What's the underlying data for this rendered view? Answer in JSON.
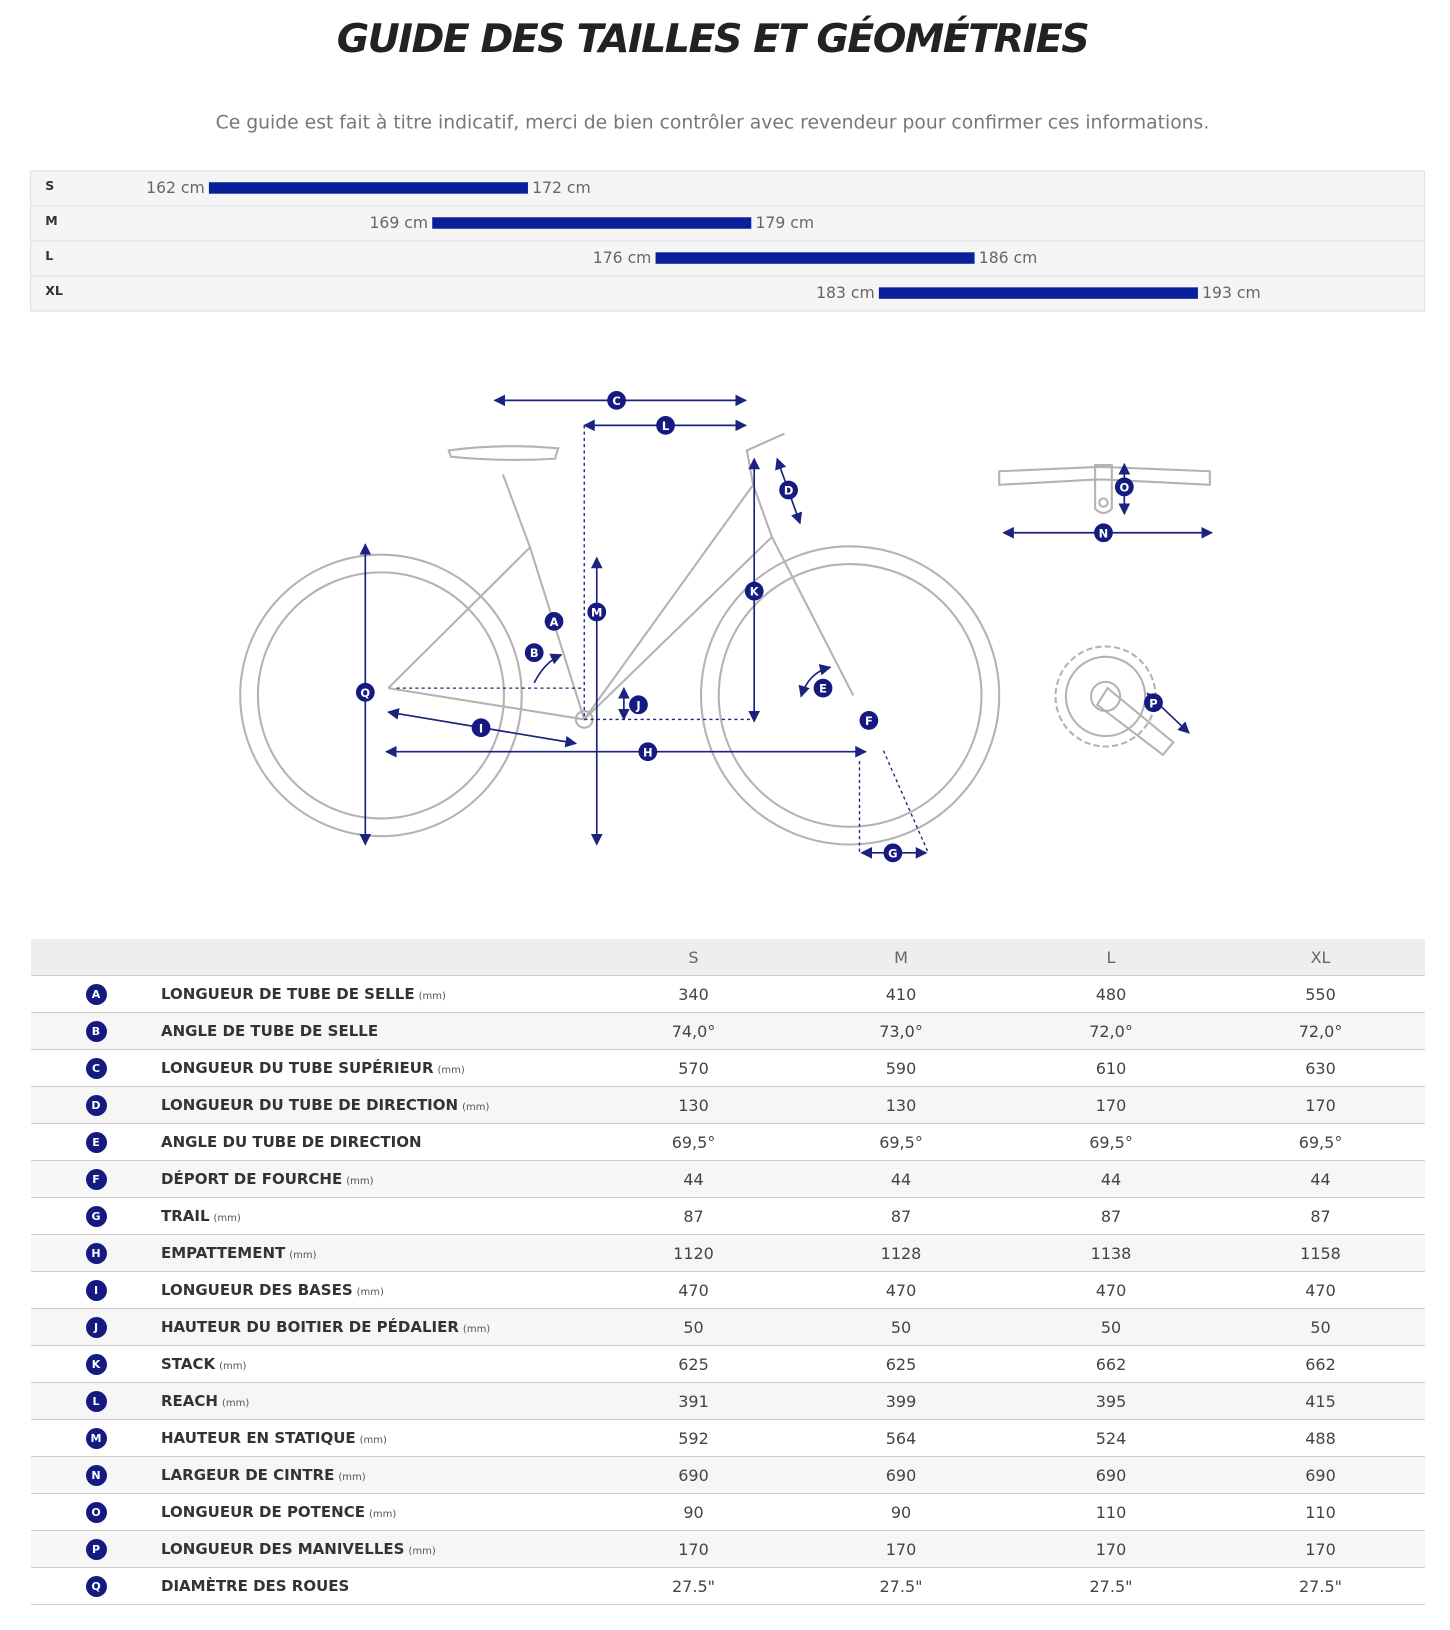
{
  "header": {
    "title": "GUIDE DES TAILLES ET GÉOMÉTRIES",
    "subtitle": "Ce guide est fait à titre indicatif, merci de bien contrôler avec revendeur pour confirmer ces informations."
  },
  "sizes": [
    {
      "size": "S",
      "min": {
        "value": 162,
        "label": "162 cm"
      },
      "max": {
        "value": 172,
        "label": "172 cm"
      }
    },
    {
      "size": "M",
      "min": {
        "value": 169,
        "label": "169 cm"
      },
      "max": {
        "value": 179,
        "label": "179 cm"
      }
    },
    {
      "size": "L",
      "min": {
        "value": 176,
        "label": "176 cm"
      },
      "max": {
        "value": 186,
        "label": "186 cm"
      }
    },
    {
      "size": "XL",
      "min": {
        "value": 183,
        "label": "183 cm"
      },
      "max": {
        "value": 193,
        "label": "193 cm"
      }
    }
  ],
  "table": {
    "columns": [
      "S",
      "M",
      "L",
      "XL"
    ],
    "rows": [
      {
        "letter": "A",
        "name": "LONGUEUR DE TUBE DE SELLE",
        "unit": "(mm)",
        "values": [
          "340",
          "410",
          "480",
          "550"
        ]
      },
      {
        "letter": "B",
        "name": "ANGLE DE TUBE DE SELLE",
        "values": [
          "74,0°",
          "73,0°",
          "72,0°",
          "72,0°"
        ]
      },
      {
        "letter": "C",
        "name": "LONGUEUR DU TUBE SUPÉRIEUR",
        "unit": "(mm)",
        "values": [
          "570",
          "590",
          "610",
          "630"
        ]
      },
      {
        "letter": "D",
        "name": "LONGUEUR DU TUBE DE DIRECTION",
        "unit": "(mm)",
        "values": [
          "130",
          "130",
          "170",
          "170"
        ]
      },
      {
        "letter": "E",
        "name": "ANGLE DU TUBE DE DIRECTION",
        "values": [
          "69,5°",
          "69,5°",
          "69,5°",
          "69,5°"
        ]
      },
      {
        "letter": "F",
        "name": "DÉPORT DE FOURCHE",
        "unit": "(mm)",
        "values": [
          "44",
          "44",
          "44",
          "44"
        ]
      },
      {
        "letter": "G",
        "name": "TRAIL",
        "unit": "(mm)",
        "values": [
          "87",
          "87",
          "87",
          "87"
        ]
      },
      {
        "letter": "H",
        "name": "EMPATTEMENT",
        "unit": "(mm)",
        "values": [
          "1120",
          "1128",
          "1138",
          "1158"
        ]
      },
      {
        "letter": "I",
        "name": "LONGUEUR DES BASES",
        "unit": "(mm)",
        "values": [
          "470",
          "470",
          "470",
          "470"
        ]
      },
      {
        "letter": "J",
        "name": "HAUTEUR DU BOITIER DE PÉDALIER",
        "unit": "(mm)",
        "values": [
          "50",
          "50",
          "50",
          "50"
        ]
      },
      {
        "letter": "K",
        "name": "STACK",
        "unit": "(mm)",
        "values": [
          "625",
          "625",
          "662",
          "662"
        ]
      },
      {
        "letter": "L",
        "name": "REACH",
        "unit": "(mm)",
        "values": [
          "391",
          "399",
          "395",
          "415"
        ]
      },
      {
        "letter": "M",
        "name": "HAUTEUR EN STATIQUE",
        "unit": "(mm)",
        "values": [
          "592",
          "564",
          "524",
          "488"
        ]
      },
      {
        "letter": "N",
        "name": "LARGEUR DE CINTRE",
        "unit": "(mm)",
        "values": [
          "690",
          "690",
          "690",
          "690"
        ]
      },
      {
        "letter": "O",
        "name": "LONGUEUR DE POTENCE",
        "unit": "(mm)",
        "values": [
          "90",
          "90",
          "110",
          "110"
        ]
      },
      {
        "letter": "P",
        "name": "LONGUEUR DES MANIVELLES",
        "unit": "(mm)",
        "values": [
          "170",
          "170",
          "170",
          "170"
        ]
      },
      {
        "letter": "Q",
        "name": "DIAMÈTRE DES ROUES",
        "values": [
          "27.5\"",
          "27.5\"",
          "27.5\"",
          "27.5\""
        ]
      }
    ]
  }
}
